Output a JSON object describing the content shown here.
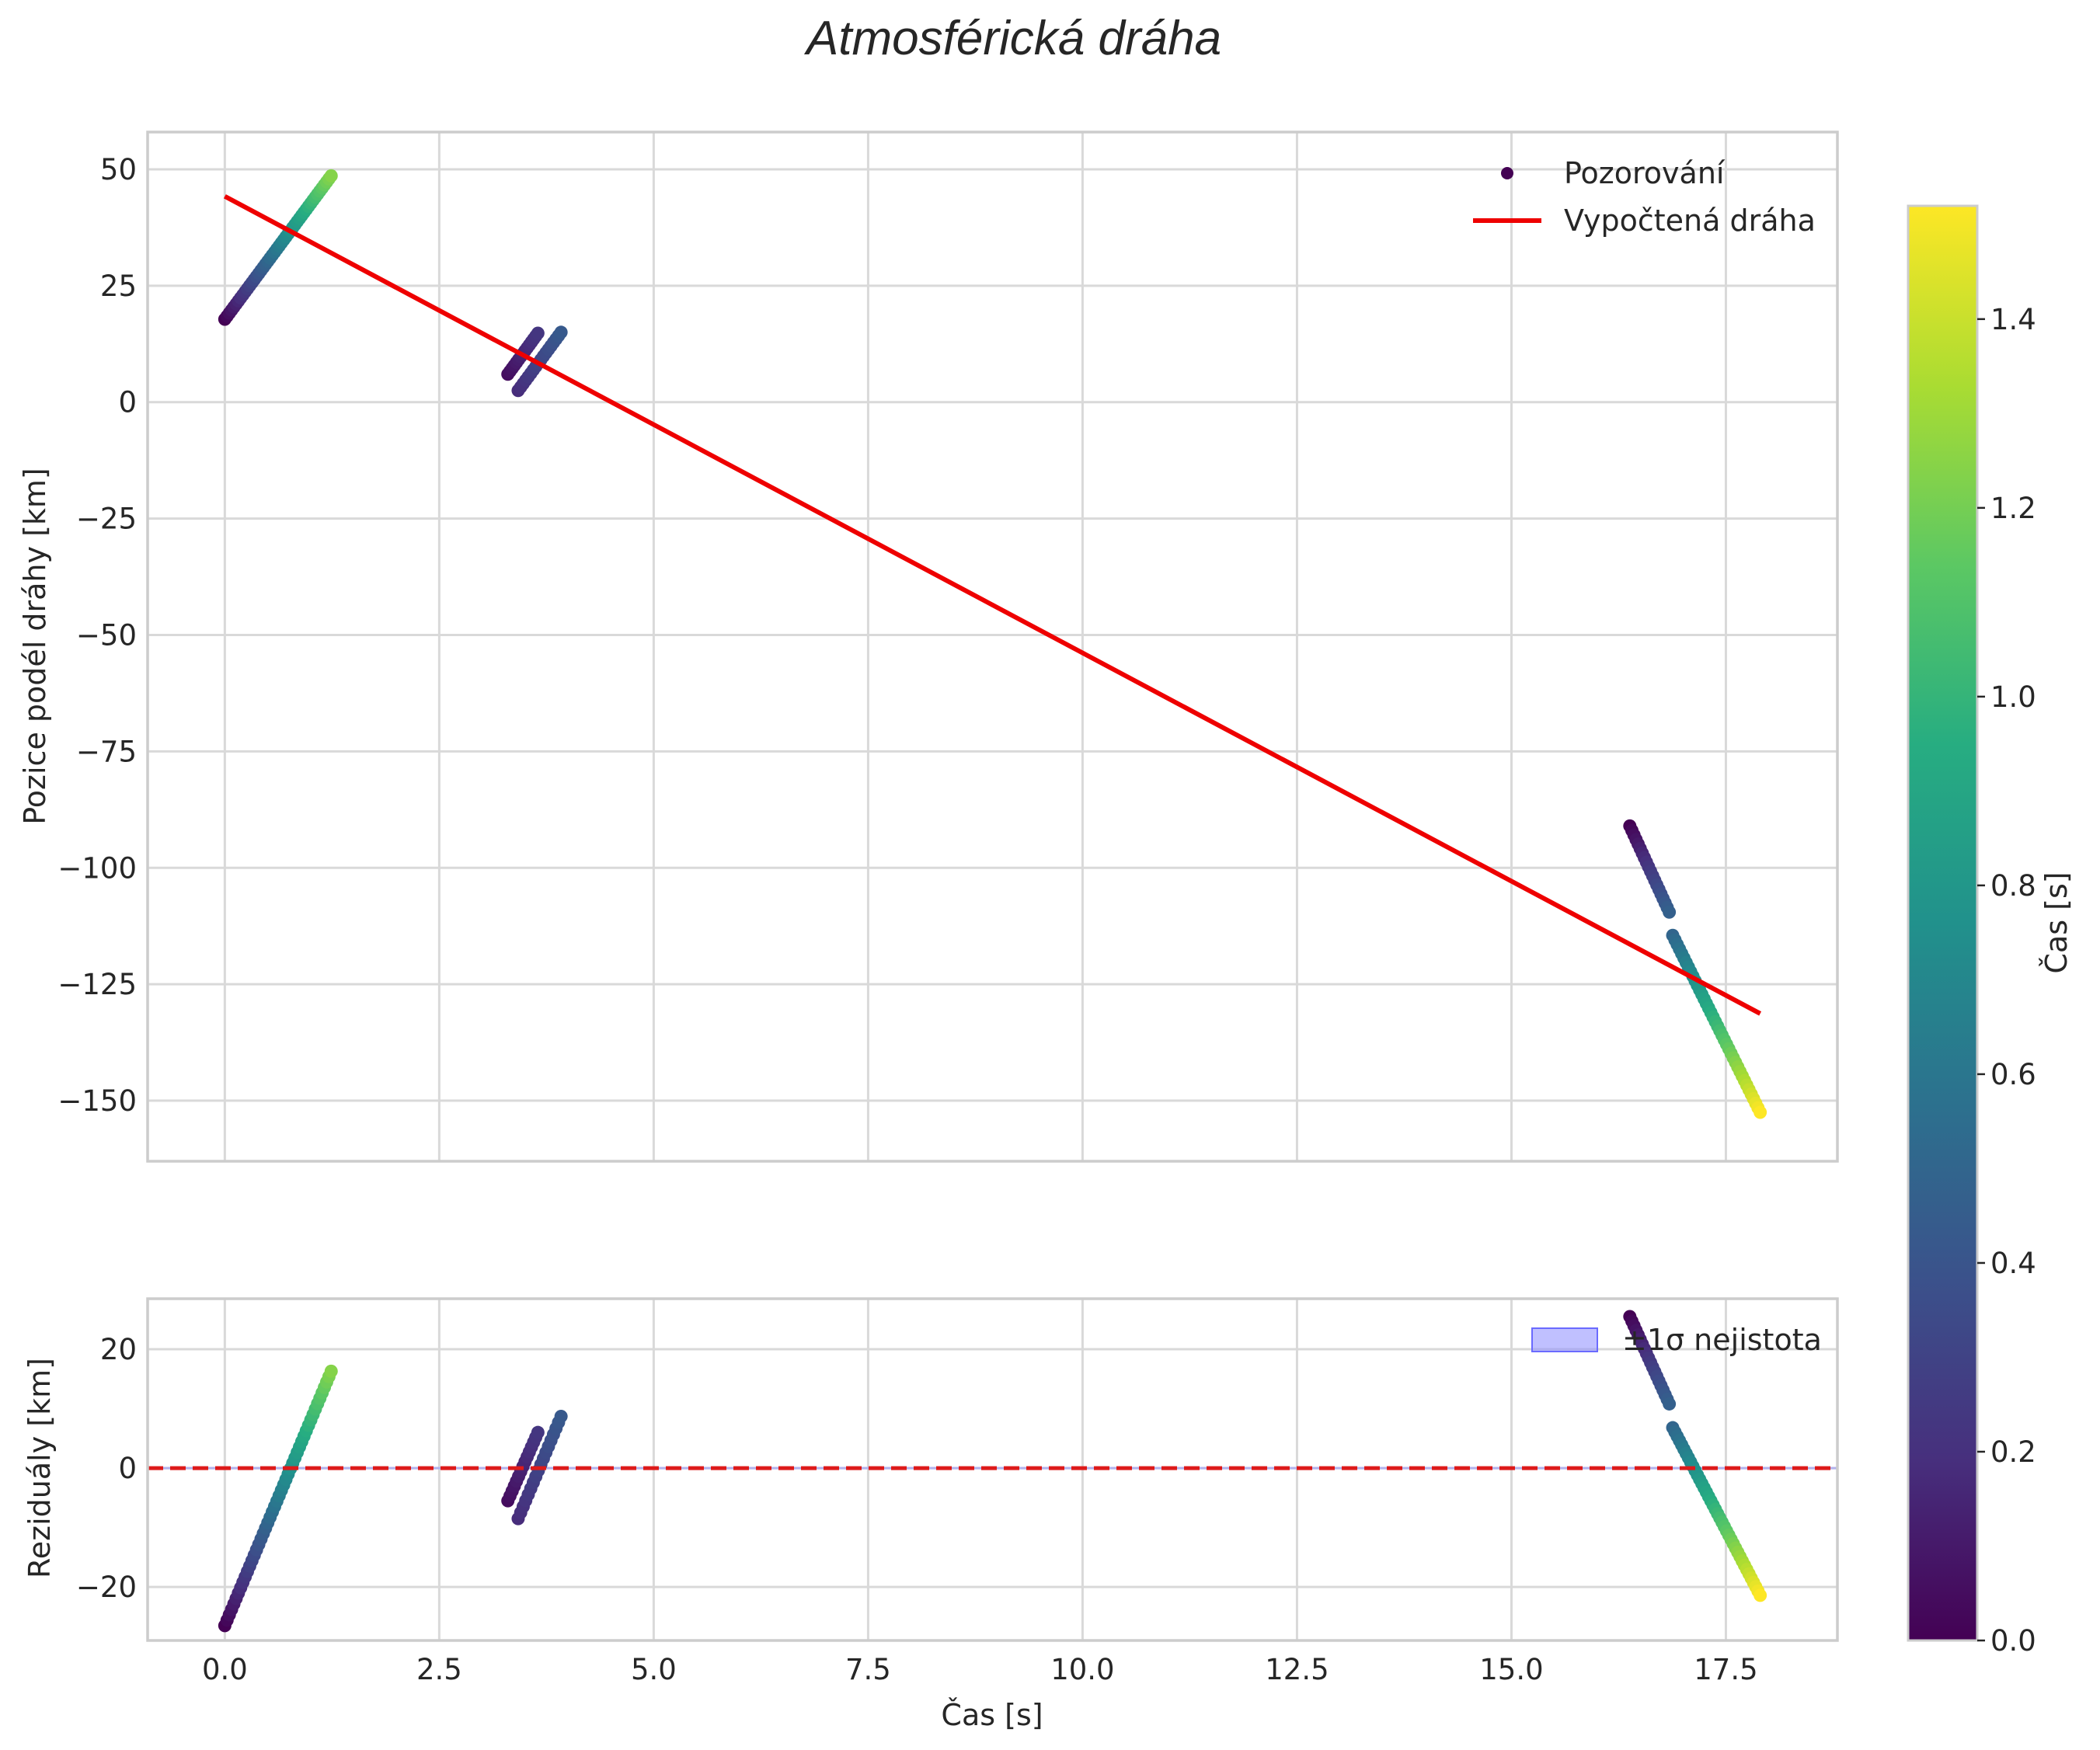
{
  "title": "Atmosférická dráha",
  "colors": {
    "fit_line": "#ee0000",
    "zero_line": "#dd1a1a",
    "band": "#8c8cff"
  },
  "colormap": "viridis",
  "chart_data": [
    {
      "type": "scatter",
      "name": "main",
      "xlabel": "",
      "ylabel": "Pozice podél dráhy [km]",
      "xlim": [
        -0.9,
        18.8
      ],
      "ylim": [
        -163,
        58
      ],
      "xticks": [
        0.0,
        2.5,
        5.0,
        7.5,
        10.0,
        12.5,
        15.0,
        17.5
      ],
      "yticks": [
        50,
        25,
        0,
        -25,
        -50,
        -75,
        -100,
        -125,
        -150
      ],
      "ytick_labels": [
        "50",
        "25",
        "0",
        "−25",
        "−50",
        "−75",
        "−100",
        "−125",
        "−150"
      ],
      "grid": true,
      "legend_position": "top-right",
      "legend": [
        "Pozorování",
        "Vypočtená dráha"
      ],
      "series": [
        {
          "name": "Pozorování",
          "kind": "scatter",
          "color_by": "elapsed time (Čas [s])",
          "segments": [
            {
              "t_start": 0.0,
              "t_end": 1.24,
              "y_start": 17.8,
              "y_end": 48.6,
              "c_start": 0.0,
              "c_end": 1.24,
              "n": 48
            },
            {
              "t_start": 3.3,
              "t_end": 3.65,
              "y_start": 6.0,
              "y_end": 14.8,
              "c_start": 0.05,
              "c_end": 0.23,
              "n": 15
            },
            {
              "t_start": 3.42,
              "t_end": 3.92,
              "y_start": 2.5,
              "y_end": 15.0,
              "c_start": 0.18,
              "c_end": 0.43,
              "n": 18
            },
            {
              "t_start": 16.38,
              "t_end": 16.84,
              "y_start": -91.0,
              "y_end": -109.5,
              "c_start": 0.0,
              "c_end": 0.47,
              "n": 20
            },
            {
              "t_start": 16.88,
              "t_end": 17.9,
              "y_start": -114.5,
              "y_end": -152.5,
              "c_start": 0.5,
              "c_end": 1.52,
              "n": 40
            }
          ]
        },
        {
          "name": "Vypočtená dráha",
          "kind": "line",
          "x": [
            0.0,
            17.9
          ],
          "y": [
            44.2,
            -131.3
          ]
        }
      ]
    },
    {
      "type": "scatter",
      "name": "residuals",
      "xlabel": "Čas [s]",
      "ylabel": "Reziduály [km]",
      "xlim": [
        -0.9,
        18.8
      ],
      "ylim": [
        -29,
        28.5
      ],
      "xticks": [
        0.0,
        2.5,
        5.0,
        7.5,
        10.0,
        12.5,
        15.0,
        17.5
      ],
      "xtick_labels": [
        "0.0",
        "2.5",
        "5.0",
        "7.5",
        "10.0",
        "12.5",
        "15.0",
        "17.5"
      ],
      "yticks": [
        20,
        0,
        -20
      ],
      "ytick_labels": [
        "20",
        "0",
        "−20"
      ],
      "grid": true,
      "legend_position": "top-right",
      "legend": [
        "±1σ nejistota"
      ],
      "reference_line_y": 0,
      "uncertainty_band": [
        -0.2,
        0.2
      ],
      "series": [
        {
          "name": "residuals",
          "kind": "scatter",
          "segments": [
            {
              "t_start": 0.0,
              "t_end": 1.24,
              "y_start": -26.5,
              "y_end": 16.3,
              "c_start": 0.0,
              "c_end": 1.24,
              "n": 48
            },
            {
              "t_start": 3.3,
              "t_end": 3.65,
              "y_start": -5.5,
              "y_end": 6.0,
              "c_start": 0.05,
              "c_end": 0.23,
              "n": 15
            },
            {
              "t_start": 3.42,
              "t_end": 3.92,
              "y_start": -8.5,
              "y_end": 8.7,
              "c_start": 0.18,
              "c_end": 0.43,
              "n": 18
            },
            {
              "t_start": 16.38,
              "t_end": 16.84,
              "y_start": 25.5,
              "y_end": 10.8,
              "c_start": 0.0,
              "c_end": 0.47,
              "n": 20
            },
            {
              "t_start": 16.88,
              "t_end": 17.9,
              "y_start": 6.8,
              "y_end": -21.4,
              "c_start": 0.5,
              "c_end": 1.52,
              "n": 40
            }
          ]
        }
      ]
    },
    {
      "type": "colorbar",
      "name": "colorbar",
      "label": "Čas [s]",
      "vmin": 0.0,
      "vmax": 1.52,
      "ticks": [
        0.0,
        0.2,
        0.4,
        0.6,
        0.8,
        1.0,
        1.2,
        1.4
      ],
      "tick_labels": [
        "0.0",
        "0.2",
        "0.4",
        "0.6",
        "0.8",
        "1.0",
        "1.2",
        "1.4"
      ]
    }
  ]
}
